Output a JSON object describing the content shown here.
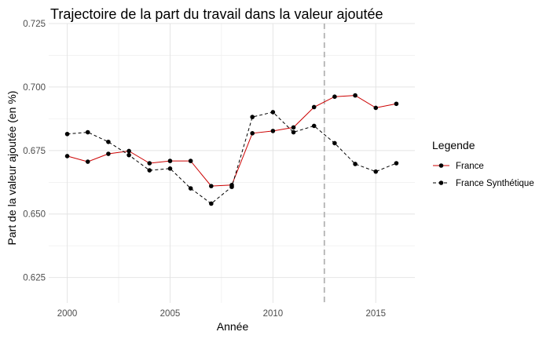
{
  "chart_data": {
    "type": "line",
    "title": "Trajectoire de la part du travail dans la valeur ajoutée",
    "xlabel": "Année",
    "ylabel": "Part de la valeur ajoutée (en %)",
    "xlim": [
      1999.1,
      2016.9
    ],
    "ylim": [
      0.615,
      0.725
    ],
    "x_ticks": [
      2000,
      2005,
      2010,
      2015
    ],
    "x_tick_labels": [
      "2000",
      "2005",
      "2010",
      "2015"
    ],
    "y_ticks": [
      0.625,
      0.65,
      0.675,
      0.7,
      0.725
    ],
    "y_tick_labels": [
      "0.625",
      "0.650",
      "0.675",
      "0.700",
      "0.725"
    ],
    "grid": true,
    "vline_x": 2012.5,
    "vline_style": "dashed grey",
    "legend": {
      "title": "Legende",
      "placement": "right"
    },
    "x": [
      2000,
      2001,
      2002,
      2003,
      2004,
      2005,
      2006,
      2007,
      2008,
      2009,
      2010,
      2011,
      2012,
      2013,
      2014,
      2015,
      2016
    ],
    "series": [
      {
        "name": "France",
        "line_color": "#cc0000",
        "line_style": "solid",
        "point_color": "#000000",
        "values": [
          0.6728,
          0.6706,
          0.6737,
          0.6748,
          0.67,
          0.6709,
          0.6709,
          0.661,
          0.6614,
          0.6818,
          0.6827,
          0.6841,
          0.6921,
          0.6962,
          0.6967,
          0.6918,
          0.6934
        ]
      },
      {
        "name": "France Synthétique",
        "line_color": "#000000",
        "line_style": "dashed",
        "point_color": "#000000",
        "values": [
          0.6815,
          0.6822,
          0.6784,
          0.6732,
          0.6672,
          0.6679,
          0.6601,
          0.6541,
          0.6607,
          0.6882,
          0.6901,
          0.6822,
          0.6847,
          0.6779,
          0.6697,
          0.6667,
          0.67
        ]
      }
    ]
  }
}
